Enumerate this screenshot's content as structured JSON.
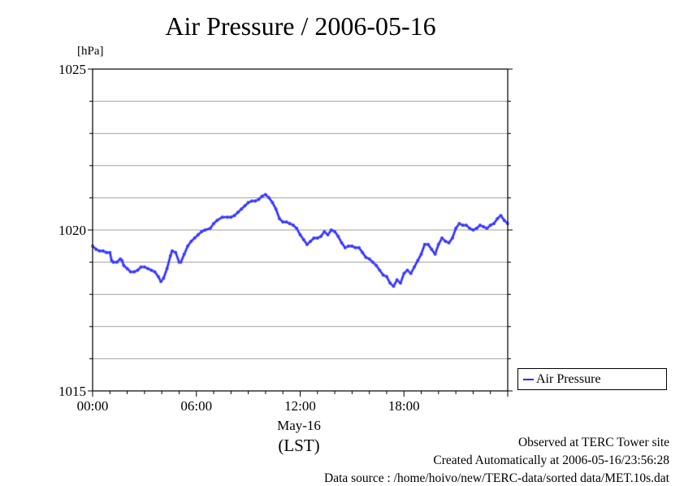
{
  "chart_data": {
    "type": "line",
    "title": "Air Pressure / 2006-05-16",
    "ylabel_unit": "[hPa]",
    "ylim": [
      1015,
      1025
    ],
    "y_ticks": [
      "1015",
      "1020",
      "1025"
    ],
    "y_grid_step": 1,
    "xlim_hours": [
      0,
      24
    ],
    "x_ticks": [
      {
        "hour": 0,
        "label": "00:00"
      },
      {
        "hour": 6,
        "label": "06:00"
      },
      {
        "hour": 12,
        "label": "12:00"
      },
      {
        "hour": 18,
        "label": "18:00"
      }
    ],
    "x_date_label": "May-16",
    "x_timezone_label": "(LST)",
    "grid": true,
    "legend_position": "right",
    "series": [
      {
        "name": "Air Pressure",
        "color": "#2a2aff",
        "x_hours": [
          0.0,
          0.2,
          0.4,
          0.6,
          0.8,
          1.0,
          1.1,
          1.2,
          1.4,
          1.6,
          1.7,
          1.8,
          2.0,
          2.2,
          2.4,
          2.6,
          2.8,
          3.0,
          3.2,
          3.4,
          3.6,
          3.8,
          3.95,
          4.1,
          4.3,
          4.5,
          4.6,
          4.8,
          5.0,
          5.1,
          5.3,
          5.5,
          5.7,
          5.9,
          6.1,
          6.3,
          6.5,
          6.8,
          7.0,
          7.2,
          7.5,
          7.8,
          8.0,
          8.2,
          8.4,
          8.6,
          8.8,
          9.0,
          9.2,
          9.4,
          9.6,
          9.8,
          10.0,
          10.2,
          10.4,
          10.6,
          10.8,
          11.0,
          11.2,
          11.4,
          11.6,
          11.8,
          12.0,
          12.2,
          12.4,
          12.6,
          12.8,
          13.0,
          13.2,
          13.4,
          13.6,
          13.8,
          14.0,
          14.2,
          14.4,
          14.6,
          14.8,
          15.0,
          15.2,
          15.4,
          15.6,
          15.8,
          16.0,
          16.2,
          16.4,
          16.6,
          16.8,
          17.0,
          17.2,
          17.4,
          17.6,
          17.8,
          18.0,
          18.2,
          18.4,
          18.6,
          18.8,
          19.0,
          19.2,
          19.4,
          19.6,
          19.8,
          20.0,
          20.2,
          20.4,
          20.6,
          20.8,
          21.0,
          21.2,
          21.4,
          21.6,
          21.8,
          22.0,
          22.2,
          22.4,
          22.6,
          22.8,
          23.0,
          23.2,
          23.4,
          23.6,
          23.8,
          24.0
        ],
        "values": [
          1019.5,
          1019.4,
          1019.35,
          1019.35,
          1019.3,
          1019.3,
          1019.05,
          1019.0,
          1019.0,
          1019.1,
          1019.05,
          1018.9,
          1018.8,
          1018.7,
          1018.7,
          1018.75,
          1018.85,
          1018.85,
          1018.8,
          1018.75,
          1018.7,
          1018.55,
          1018.4,
          1018.5,
          1018.8,
          1019.2,
          1019.35,
          1019.3,
          1019.0,
          1019.0,
          1019.25,
          1019.5,
          1019.65,
          1019.75,
          1019.85,
          1019.95,
          1020.0,
          1020.05,
          1020.2,
          1020.3,
          1020.4,
          1020.4,
          1020.4,
          1020.45,
          1020.55,
          1020.65,
          1020.75,
          1020.85,
          1020.9,
          1020.9,
          1020.95,
          1021.05,
          1021.1,
          1021.0,
          1020.85,
          1020.65,
          1020.35,
          1020.25,
          1020.25,
          1020.2,
          1020.15,
          1020.05,
          1019.85,
          1019.7,
          1019.55,
          1019.65,
          1019.75,
          1019.75,
          1019.8,
          1019.95,
          1019.85,
          1020.0,
          1019.95,
          1019.8,
          1019.6,
          1019.45,
          1019.5,
          1019.5,
          1019.45,
          1019.45,
          1019.3,
          1019.15,
          1019.1,
          1019.0,
          1018.9,
          1018.75,
          1018.6,
          1018.55,
          1018.35,
          1018.25,
          1018.45,
          1018.35,
          1018.65,
          1018.75,
          1018.65,
          1018.85,
          1019.05,
          1019.25,
          1019.55,
          1019.55,
          1019.4,
          1019.25,
          1019.55,
          1019.75,
          1019.65,
          1019.6,
          1019.75,
          1020.05,
          1020.2,
          1020.15,
          1020.15,
          1020.05,
          1020.0,
          1020.05,
          1020.15,
          1020.1,
          1020.05,
          1020.15,
          1020.2,
          1020.35,
          1020.45,
          1020.3,
          1020.2
        ]
      }
    ]
  },
  "footer": {
    "line1": "Observed at TERC Tower site",
    "line2": "Created Automatically at 2006-05-16/23:56:28",
    "line3": "Data source : /home/hoivo/new/TERC-data/sorted  data/MET.10s.dat"
  }
}
